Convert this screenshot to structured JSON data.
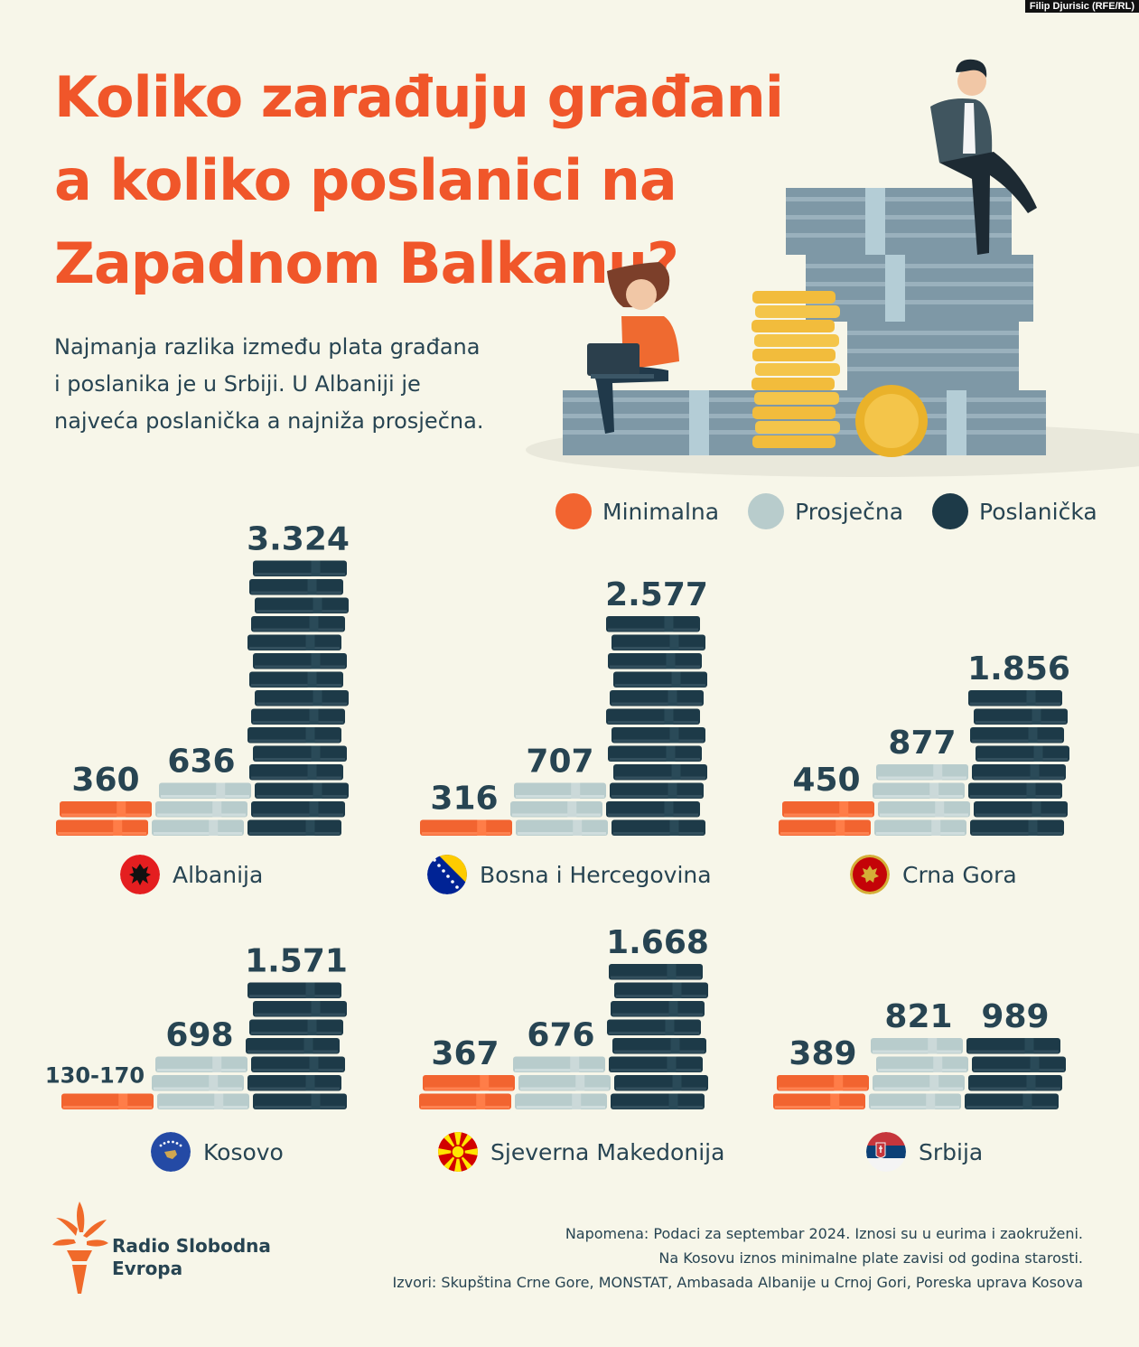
{
  "credit": "Filip Djurisic (RFE/RL)",
  "title": {
    "line1": "Koliko zarađuju građani",
    "line2": "a koliko poslanici na",
    "line3": "Zapadnom Balkanu?"
  },
  "subtitle": {
    "line1": "Najmanja razlika između plata građana",
    "line2": "i poslanika je u Srbiji. U Albaniji je",
    "line3": "najveća poslanička a najniža prosječna."
  },
  "colors": {
    "background": "#f7f6e9",
    "accent": "#f0562a",
    "minimalna": "#f26430",
    "prosjecna": "#b8cccc",
    "poslanicka": "#1d3a48",
    "text": "#274452"
  },
  "icons": [
    "flag-albania-icon",
    "flag-bih-icon",
    "flag-montenegro-icon",
    "flag-kosovo-icon",
    "flag-north-macedonia-icon",
    "flag-serbia-icon",
    "rse-torch-logo-icon"
  ],
  "chart_data": {
    "type": "bar",
    "series_names": [
      "Minimalna",
      "Prosječna",
      "Poslanička"
    ],
    "countries": [
      {
        "name": "Albanija",
        "values": [
          360,
          636,
          3324
        ],
        "labels": [
          "360",
          "636",
          "3.324"
        ]
      },
      {
        "name": "Bosna i Hercegovina",
        "values": [
          316,
          707,
          2577
        ],
        "labels": [
          "316",
          "707",
          "2.577"
        ]
      },
      {
        "name": "Crna Gora",
        "values": [
          450,
          877,
          1856
        ],
        "labels": [
          "450",
          "877",
          "1.856"
        ]
      },
      {
        "name": "Kosovo",
        "values": [
          [
            130,
            170
          ],
          698,
          1571
        ],
        "labels": [
          "130-170",
          "698",
          "1.571"
        ]
      },
      {
        "name": "Sjeverna Makedonija",
        "values": [
          367,
          676,
          1668
        ],
        "labels": [
          "367",
          "676",
          "1.668"
        ]
      },
      {
        "name": "Srbija",
        "values": [
          389,
          821,
          989
        ],
        "labels": [
          "389",
          "821",
          "989"
        ]
      }
    ]
  },
  "logo": {
    "line1": "Radio Slobodna",
    "line2": "Evropa"
  },
  "footer": {
    "line1": "Napomena: Podaci za septembar 2024. Iznosi su u eurima i zaokruženi.",
    "line2": "Na Kosovu iznos minimalne plate zavisi od godina starosti.",
    "line3": "Izvori: Skupština Crne Gore, MONSTAT, Ambasada Albanije u Crnoj Gori, Poreska uprava Kosova"
  }
}
